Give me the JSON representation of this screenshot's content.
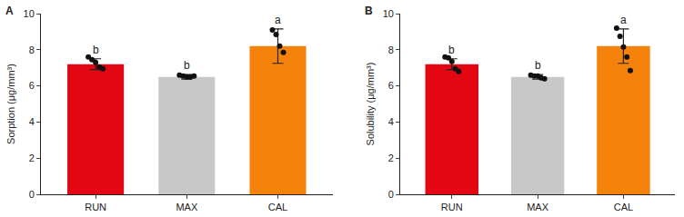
{
  "chart_data": [
    {
      "type": "bar",
      "title": "A",
      "y_label": "Sorption (μg/mm³)",
      "categories": [
        "RUN",
        "MAX",
        "CAL"
      ],
      "values": [
        7.2,
        6.5,
        8.2
      ],
      "errors": [
        0.3,
        0.13,
        0.95
      ],
      "points": [
        [
          7.6,
          7.45,
          7.3,
          7.05,
          6.95
        ],
        [
          6.6,
          6.55,
          6.5,
          6.5,
          6.55
        ],
        [
          9.1,
          8.85,
          8.2,
          7.85
        ]
      ],
      "annotations": [
        "b",
        "b",
        "a"
      ],
      "colors": [
        "#e30613",
        "#c8c8c8",
        "#f5820a"
      ],
      "ylim": [
        0,
        10
      ],
      "yticks": [
        0,
        2,
        4,
        6,
        8,
        10
      ],
      "grid": false
    },
    {
      "type": "bar",
      "title": "B",
      "y_label": "Solubility (μg/mm³)",
      "categories": [
        "RUN",
        "MAX",
        "CAL"
      ],
      "values": [
        7.2,
        6.5,
        8.2
      ],
      "errors": [
        0.3,
        0.13,
        0.95
      ],
      "points": [
        [
          7.6,
          7.55,
          7.35,
          6.95,
          6.8
        ],
        [
          6.6,
          6.55,
          6.55,
          6.45,
          6.4
        ],
        [
          9.2,
          8.75,
          8.15,
          7.6,
          6.85
        ]
      ],
      "annotations": [
        "b",
        "b",
        "a"
      ],
      "colors": [
        "#e30613",
        "#c8c8c8",
        "#f5820a"
      ],
      "ylim": [
        0,
        10
      ],
      "yticks": [
        0,
        2,
        4,
        6,
        8,
        10
      ],
      "grid": false
    }
  ]
}
